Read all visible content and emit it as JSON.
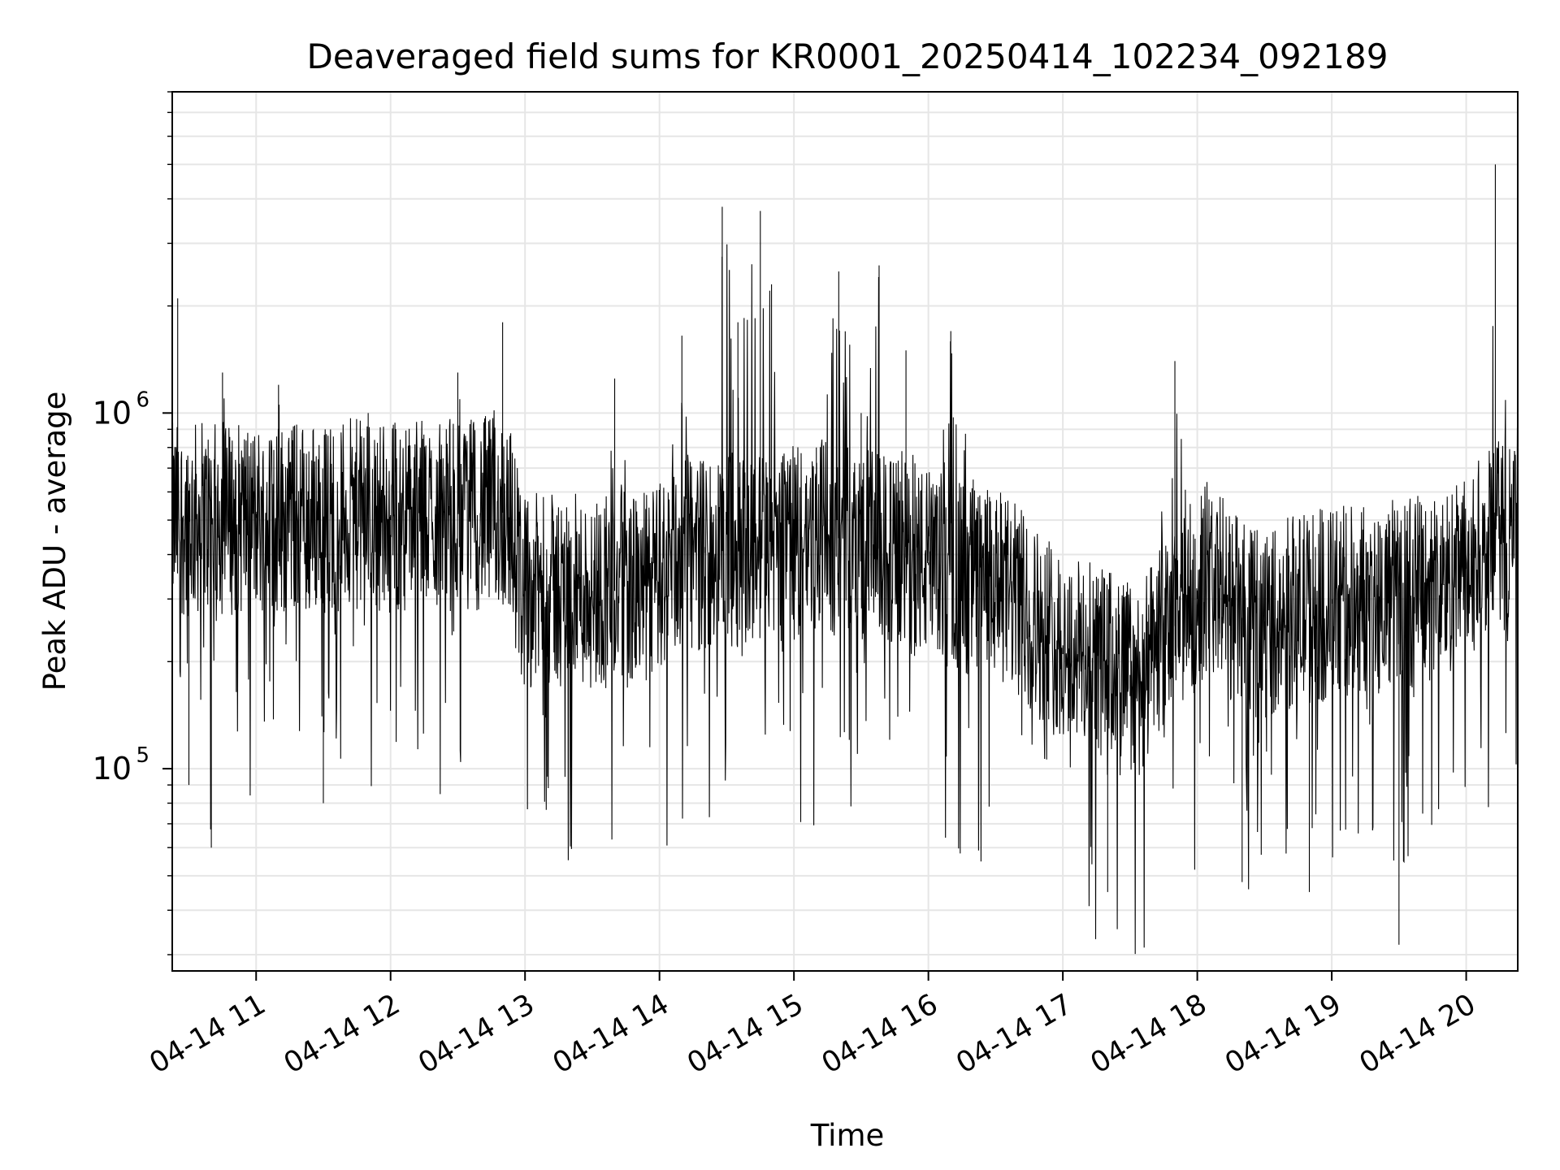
{
  "chart_data": {
    "type": "line",
    "title": "Deaveraged field sums for KR0001_20250414_102234_092189",
    "xlabel": "Time",
    "ylabel": "Peak ADU - average",
    "yscale": "log",
    "ylim": [
      27000,
      8000000
    ],
    "xlim": [
      "2025-04-14T10:22:34",
      "2025-04-14T20:23:00"
    ],
    "grid": true,
    "line_color": "#000000",
    "grid_color": "#e6e6e6",
    "x_ticks": [
      {
        "value": "2025-04-14T11:00",
        "label": "04-14 11"
      },
      {
        "value": "2025-04-14T12:00",
        "label": "04-14 12"
      },
      {
        "value": "2025-04-14T13:00",
        "label": "04-14 13"
      },
      {
        "value": "2025-04-14T14:00",
        "label": "04-14 14"
      },
      {
        "value": "2025-04-14T15:00",
        "label": "04-14 15"
      },
      {
        "value": "2025-04-14T16:00",
        "label": "04-14 16"
      },
      {
        "value": "2025-04-14T17:00",
        "label": "04-14 17"
      },
      {
        "value": "2025-04-14T18:00",
        "label": "04-14 18"
      },
      {
        "value": "2025-04-14T19:00",
        "label": "04-14 19"
      },
      {
        "value": "2025-04-14T20:00",
        "label": "04-14 20"
      }
    ],
    "y_ticks": [
      {
        "value": 100000,
        "base": "10",
        "exp": "5"
      },
      {
        "value": 1000000,
        "base": "10",
        "exp": "6"
      }
    ],
    "series": [
      {
        "x": [
          "2025-04-14T10:22",
          "2025-04-14T10:25",
          "2025-04-14T10:30",
          "2025-04-14T10:33",
          "2025-04-14T10:40",
          "2025-04-14T10:45",
          "2025-04-14T10:50",
          "2025-04-14T11:00",
          "2025-04-14T11:10",
          "2025-04-14T11:20",
          "2025-04-14T11:30",
          "2025-04-14T11:40",
          "2025-04-14T11:50",
          "2025-04-14T12:00",
          "2025-04-14T12:10",
          "2025-04-14T12:20",
          "2025-04-14T12:30",
          "2025-04-14T12:40",
          "2025-04-14T12:50",
          "2025-04-14T13:00",
          "2025-04-14T13:10",
          "2025-04-14T13:15",
          "2025-04-14T13:20",
          "2025-04-14T13:30",
          "2025-04-14T13:40",
          "2025-04-14T13:50",
          "2025-04-14T14:00",
          "2025-04-14T14:10",
          "2025-04-14T14:20",
          "2025-04-14T14:28",
          "2025-04-14T14:35",
          "2025-04-14T14:45",
          "2025-04-14T14:50",
          "2025-04-14T15:00",
          "2025-04-14T15:10",
          "2025-04-14T15:20",
          "2025-04-14T15:30",
          "2025-04-14T15:38",
          "2025-04-14T15:45",
          "2025-04-14T15:50",
          "2025-04-14T16:00",
          "2025-04-14T16:10",
          "2025-04-14T16:20",
          "2025-04-14T16:30",
          "2025-04-14T16:40",
          "2025-04-14T16:50",
          "2025-04-14T17:00",
          "2025-04-14T17:10",
          "2025-04-14T17:20",
          "2025-04-14T17:30",
          "2025-04-14T17:40",
          "2025-04-14T17:50",
          "2025-04-14T18:00",
          "2025-04-14T18:10",
          "2025-04-14T18:20",
          "2025-04-14T18:30",
          "2025-04-14T18:40",
          "2025-04-14T18:50",
          "2025-04-14T19:00",
          "2025-04-14T19:10",
          "2025-04-14T19:20",
          "2025-04-14T19:30",
          "2025-04-14T19:40",
          "2025-04-14T19:50",
          "2025-04-14T20:00",
          "2025-04-14T20:10",
          "2025-04-14T20:13",
          "2025-04-14T20:20"
        ],
        "y": [
          500000,
          2100000,
          90000,
          650000,
          60000,
          1300000,
          480000,
          520000,
          1200000,
          600000,
          80000,
          550000,
          1000000,
          500000,
          560000,
          480000,
          1300000,
          450000,
          1800000,
          480000,
          95000,
          420000,
          350000,
          300000,
          1250000,
          400000,
          330000,
          1650000,
          420000,
          3800000,
          1800000,
          3700000,
          2300000,
          350000,
          800000,
          2500000,
          1000000,
          2600000,
          480000,
          1500000,
          380000,
          1700000,
          650000,
          420000,
          480000,
          220000,
          210000,
          190000,
          45000,
          160000,
          300000,
          1400000,
          300000,
          240000,
          48000,
          230000,
          250000,
          45000,
          300000,
          330000,
          400000,
          32000,
          350000,
          330000,
          380000,
          480000,
          5000000,
          500000
        ]
      }
    ]
  }
}
